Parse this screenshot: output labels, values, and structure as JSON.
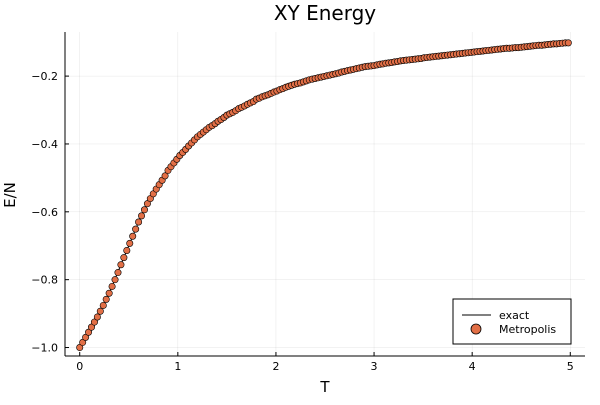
{
  "chart_data": {
    "type": "scatter",
    "title": "XY Energy",
    "xlabel": "T",
    "ylabel": "E/N",
    "xlim": [
      -0.15,
      5.15
    ],
    "ylim": [
      -1.025,
      -0.07
    ],
    "xticks": [
      0,
      1,
      2,
      3,
      4,
      5
    ],
    "xtick_labels": [
      "0",
      "1",
      "2",
      "3",
      "4",
      "5"
    ],
    "yticks": [
      -1.0,
      -0.8,
      -0.6,
      -0.4,
      -0.2
    ],
    "ytick_labels": [
      "−1.0",
      "−0.8",
      "−0.6",
      "−0.4",
      "−0.2"
    ],
    "grid": true,
    "legend_position": "bottom-right",
    "series": [
      {
        "name": "exact",
        "kind": "line",
        "color": "#000000",
        "x": [
          0.0,
          0.1,
          0.2,
          0.3,
          0.4,
          0.5,
          0.6,
          0.7,
          0.8,
          0.9,
          1.0,
          1.2,
          1.4,
          1.6,
          1.8,
          2.0,
          2.25,
          2.5,
          2.75,
          3.0,
          3.5,
          4.0,
          4.5,
          5.0
        ],
        "y": [
          -1.0,
          -0.95,
          -0.9,
          -0.84,
          -0.77,
          -0.7,
          -0.63,
          -0.57,
          -0.52,
          -0.478,
          -0.44,
          -0.379,
          -0.333,
          -0.298,
          -0.268,
          -0.245,
          -0.22,
          -0.2,
          -0.183,
          -0.17,
          -0.147,
          -0.13,
          -0.116,
          -0.103
        ]
      },
      {
        "name": "Metropolis",
        "kind": "scatter",
        "color": "#e26f46",
        "edge_color": "#000000",
        "x": [
          0.0,
          0.03,
          0.06,
          0.09,
          0.12,
          0.15,
          0.18,
          0.21,
          0.24,
          0.27,
          0.3,
          0.33,
          0.36,
          0.39,
          0.42,
          0.45,
          0.48,
          0.51,
          0.54,
          0.57,
          0.6,
          0.63,
          0.66,
          0.69,
          0.72,
          0.75,
          0.78,
          0.81,
          0.84,
          0.87,
          0.9,
          0.93,
          0.96,
          0.99,
          1.02,
          1.05,
          1.08,
          1.11,
          1.14,
          1.17,
          1.2,
          1.23,
          1.26,
          1.29,
          1.32,
          1.35,
          1.38,
          1.41,
          1.44,
          1.47,
          1.5,
          1.53,
          1.56,
          1.59,
          1.62,
          1.65,
          1.68,
          1.71,
          1.74,
          1.77,
          1.8,
          1.83,
          1.86,
          1.89,
          1.92,
          1.95,
          1.98,
          2.01,
          2.04,
          2.07,
          2.1,
          2.13,
          2.16,
          2.19,
          2.22,
          2.25,
          2.28,
          2.31,
          2.34,
          2.37,
          2.4,
          2.43,
          2.46,
          2.49,
          2.52,
          2.55,
          2.58,
          2.61,
          2.64,
          2.67,
          2.7,
          2.73,
          2.76,
          2.79,
          2.82,
          2.85,
          2.88,
          2.91,
          2.94,
          2.97,
          3.0,
          3.03,
          3.06,
          3.09,
          3.12,
          3.15,
          3.18,
          3.21,
          3.24,
          3.27,
          3.3,
          3.33,
          3.36,
          3.39,
          3.42,
          3.45,
          3.48,
          3.51,
          3.54,
          3.57,
          3.6,
          3.63,
          3.66,
          3.69,
          3.72,
          3.75,
          3.78,
          3.81,
          3.84,
          3.87,
          3.9,
          3.93,
          3.96,
          3.99,
          4.02,
          4.05,
          4.08,
          4.11,
          4.14,
          4.17,
          4.2,
          4.23,
          4.26,
          4.29,
          4.32,
          4.35,
          4.38,
          4.41,
          4.44,
          4.47,
          4.5,
          4.53,
          4.56,
          4.59,
          4.62,
          4.65,
          4.68,
          4.71,
          4.74,
          4.77,
          4.8,
          4.83,
          4.86,
          4.89,
          4.92,
          4.95,
          4.98
        ],
        "y": [
          -1.0,
          -0.985,
          -0.97,
          -0.955,
          -0.94,
          -0.925,
          -0.91,
          -0.893,
          -0.876,
          -0.858,
          -0.84,
          -0.82,
          -0.8,
          -0.779,
          -0.756,
          -0.735,
          -0.714,
          -0.693,
          -0.672,
          -0.651,
          -0.63,
          -0.612,
          -0.594,
          -0.576,
          -0.561,
          -0.547,
          -0.533,
          -0.52,
          -0.507,
          -0.494,
          -0.478,
          -0.467,
          -0.456,
          -0.445,
          -0.434,
          -0.425,
          -0.416,
          -0.406,
          -0.397,
          -0.388,
          -0.379,
          -0.372,
          -0.365,
          -0.358,
          -0.351,
          -0.346,
          -0.34,
          -0.333,
          -0.328,
          -0.322,
          -0.315,
          -0.311,
          -0.307,
          -0.302,
          -0.296,
          -0.292,
          -0.288,
          -0.283,
          -0.279,
          -0.275,
          -0.268,
          -0.265,
          -0.261,
          -0.258,
          -0.255,
          -0.251,
          -0.247,
          -0.244,
          -0.24,
          -0.237,
          -0.233,
          -0.23,
          -0.227,
          -0.224,
          -0.222,
          -0.22,
          -0.217,
          -0.214,
          -0.211,
          -0.209,
          -0.207,
          -0.205,
          -0.203,
          -0.201,
          -0.199,
          -0.197,
          -0.195,
          -0.193,
          -0.191,
          -0.188,
          -0.186,
          -0.184,
          -0.182,
          -0.18,
          -0.178,
          -0.176,
          -0.174,
          -0.172,
          -0.171,
          -0.17,
          -0.169,
          -0.167,
          -0.165,
          -0.164,
          -0.162,
          -0.161,
          -0.16,
          -0.158,
          -0.157,
          -0.155,
          -0.154,
          -0.153,
          -0.152,
          -0.151,
          -0.15,
          -0.149,
          -0.148,
          -0.146,
          -0.145,
          -0.144,
          -0.143,
          -0.142,
          -0.141,
          -0.14,
          -0.139,
          -0.138,
          -0.137,
          -0.136,
          -0.135,
          -0.134,
          -0.133,
          -0.132,
          -0.131,
          -0.13,
          -0.129,
          -0.128,
          -0.127,
          -0.126,
          -0.125,
          -0.124,
          -0.123,
          -0.122,
          -0.121,
          -0.12,
          -0.119,
          -0.118,
          -0.118,
          -0.117,
          -0.116,
          -0.116,
          -0.115,
          -0.114,
          -0.113,
          -0.112,
          -0.111,
          -0.11,
          -0.109,
          -0.109,
          -0.108,
          -0.107,
          -0.106,
          -0.105,
          -0.105,
          -0.104,
          -0.103,
          -0.102,
          -0.102
        ]
      }
    ]
  }
}
